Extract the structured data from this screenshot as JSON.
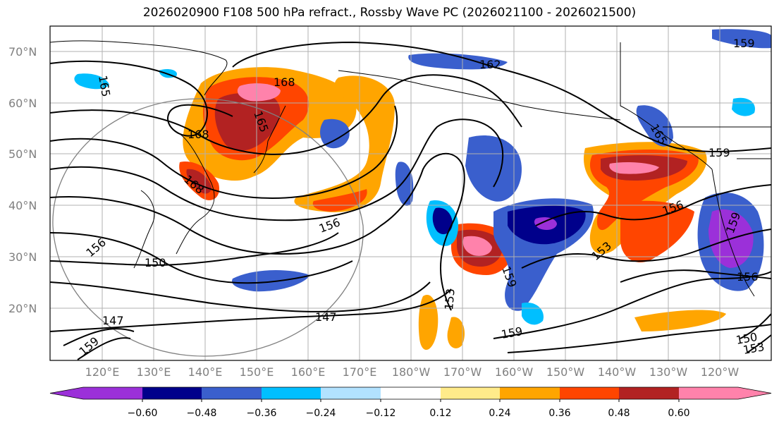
{
  "title": "2026020900 F108 500 hPa refract., Rossby Wave PC (2026021100 - 2026021500)",
  "lat_labels": [
    "70°N",
    "60°N",
    "50°N",
    "40°N",
    "30°N",
    "20°N"
  ],
  "lon_labels": [
    "120°E",
    "130°E",
    "140°E",
    "150°E",
    "160°E",
    "170°E",
    "180°W",
    "170°W",
    "160°W",
    "150°W",
    "140°W",
    "130°W",
    "120°W"
  ],
  "colorbar": {
    "ticks": [
      "−0.60",
      "−0.48",
      "−0.36",
      "−0.24",
      "−0.12",
      "0.12",
      "0.24",
      "0.36",
      "0.48",
      "0.60"
    ],
    "colors": [
      "#9b30d9",
      "#00008b",
      "#3a5fcd",
      "#00bfff",
      "#b2e2ff",
      "#ffffff",
      "#ffeb8a",
      "#ffa500",
      "#ff4500",
      "#b22222",
      "#ff82ab"
    ]
  },
  "contour_labels": [
    "165",
    "168",
    "165",
    "168",
    "159",
    "162",
    "156",
    "150",
    "147",
    "153",
    "159",
    "165",
    "168",
    "159",
    "156",
    "153",
    "159",
    "156",
    "150",
    "153",
    "159",
    "147",
    "156",
    "159"
  ],
  "colors": {
    "neg_strong": "#00008b",
    "neg_med": "#3a5fcd",
    "neg_light": "#00bfff",
    "pos_med": "#ffa500",
    "pos_strong": "#b22222",
    "pos_peak": "#ff82ab"
  }
}
